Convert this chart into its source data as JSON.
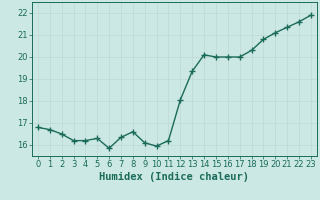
{
  "x": [
    0,
    1,
    2,
    3,
    4,
    5,
    6,
    7,
    8,
    9,
    10,
    11,
    12,
    13,
    14,
    15,
    16,
    17,
    18,
    19,
    20,
    21,
    22,
    23
  ],
  "y": [
    16.8,
    16.7,
    16.5,
    16.2,
    16.2,
    16.3,
    15.85,
    16.35,
    16.6,
    16.1,
    15.95,
    16.2,
    18.05,
    19.35,
    20.1,
    20.0,
    20.0,
    20.0,
    20.3,
    20.8,
    21.1,
    21.35,
    21.6,
    21.9
  ],
  "bg_color": "#cce8e4",
  "line_color": "#1a6b5a",
  "marker_color": "#1a6b5a",
  "grid_color_major": "#c0d8d2",
  "grid_color_minor": "#daeae6",
  "xlabel": "Humidex (Indice chaleur)",
  "xlim": [
    -0.5,
    23.5
  ],
  "ylim": [
    15.5,
    22.5
  ],
  "yticks": [
    16,
    17,
    18,
    19,
    20,
    21,
    22
  ],
  "xticks": [
    0,
    1,
    2,
    3,
    4,
    5,
    6,
    7,
    8,
    9,
    10,
    11,
    12,
    13,
    14,
    15,
    16,
    17,
    18,
    19,
    20,
    21,
    22,
    23
  ],
  "tick_fontsize": 6,
  "xlabel_fontsize": 7.5,
  "linewidth": 1.0,
  "markersize": 2.5
}
